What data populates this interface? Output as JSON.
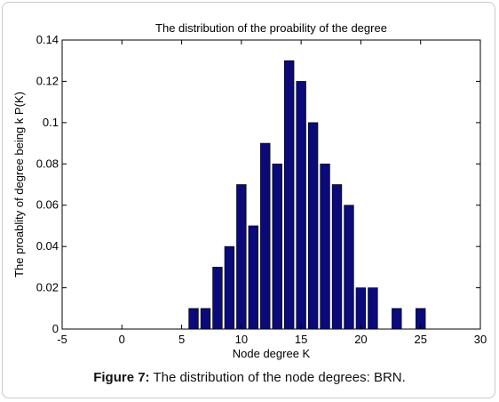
{
  "chart_data": {
    "type": "bar",
    "title": "The distribution of the proability of the degree",
    "xlabel": "Node degree K",
    "ylabel": "The proablity of degree being k P(K)",
    "xlim": [
      -5,
      30
    ],
    "ylim": [
      0,
      0.14
    ],
    "xticks": [
      "-5",
      "0",
      "5",
      "10",
      "15",
      "20",
      "25",
      "30"
    ],
    "yticks": [
      "0",
      "0.02",
      "0.04",
      "0.06",
      "0.08",
      "0.1",
      "0.12",
      "0.14"
    ],
    "bar_color": "#0a0a7a",
    "grid": false,
    "x": [
      6,
      7,
      8,
      9,
      10,
      11,
      12,
      13,
      14,
      15,
      16,
      17,
      18,
      19,
      20,
      21,
      23,
      25
    ],
    "values": [
      0.01,
      0.01,
      0.03,
      0.04,
      0.07,
      0.05,
      0.09,
      0.08,
      0.13,
      0.12,
      0.1,
      0.08,
      0.07,
      0.06,
      0.02,
      0.02,
      0.01,
      0.01
    ]
  },
  "caption": {
    "label": "Figure 7:",
    "text": " The distribution of the node degrees: BRN."
  }
}
